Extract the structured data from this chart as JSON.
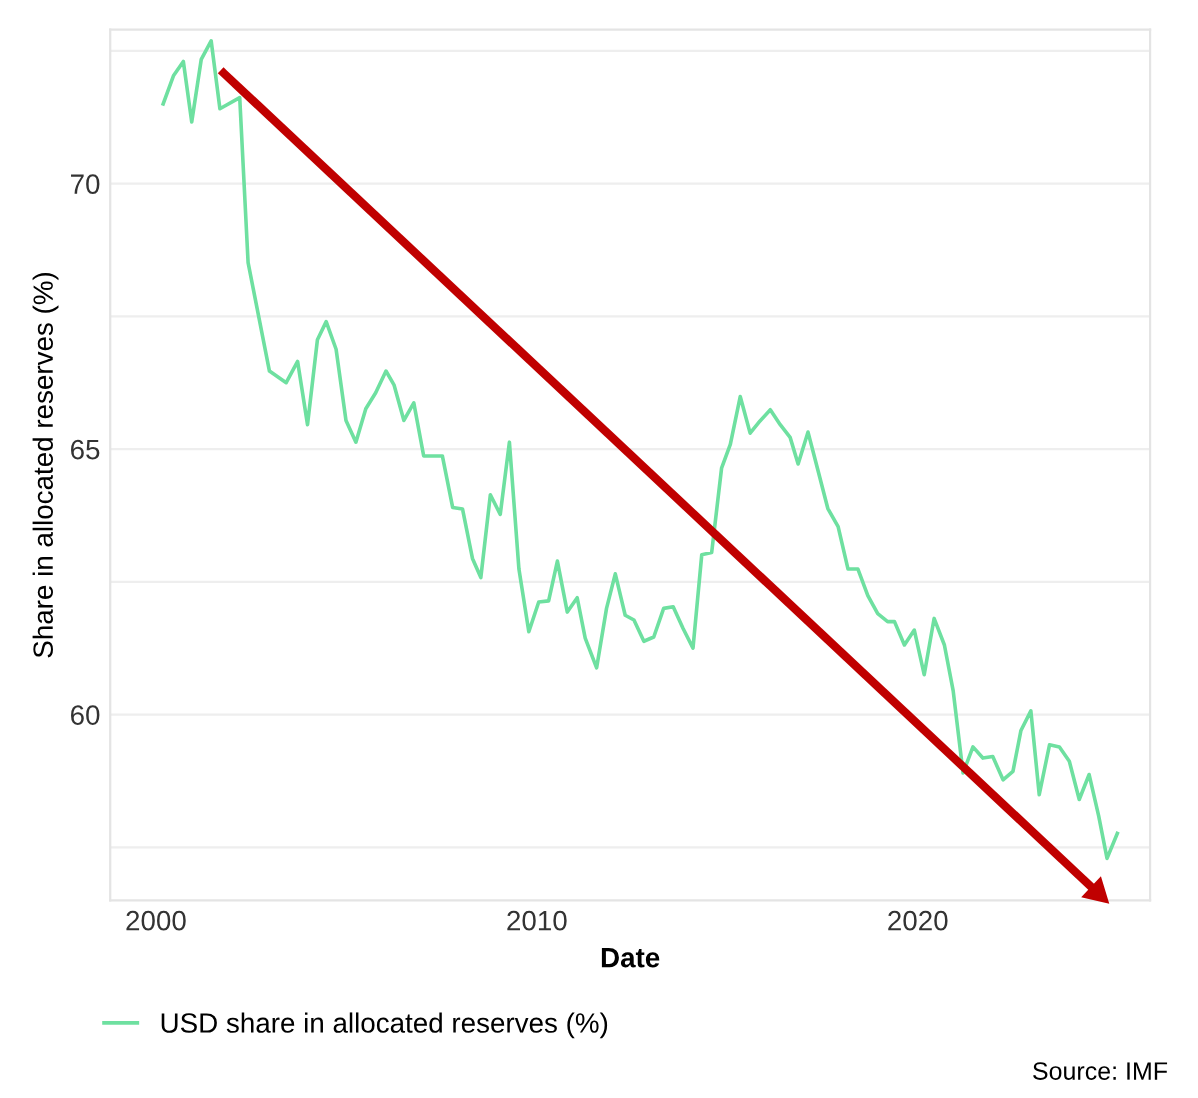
{
  "chart_data": {
    "type": "line",
    "xlabel": "Date",
    "ylabel": "Share in allocated reserves (%)",
    "xlim": [
      1998.8,
      2026.1
    ],
    "xticks": [
      2000,
      2010,
      2020
    ],
    "ylim": [
      56.5,
      72.9
    ],
    "yticks": [
      {
        "value": 57.5,
        "label": null
      },
      60,
      {
        "value": 62.5,
        "label": null
      },
      65,
      {
        "value": 67.5,
        "label": null
      },
      70,
      {
        "value": 72.5,
        "label": null
      }
    ],
    "grid": "y",
    "legend": "bottom left",
    "marker": "none",
    "line_style": "solid",
    "annotations": [
      "Source: IMF"
    ],
    "series": [
      {
        "name": "USD share in allocated reserves (%)",
        "color": "#6ee0a0",
        "x": [
          2000.19,
          2000.46,
          2000.72,
          2000.94,
          2001.19,
          2001.45,
          2001.68,
          2002.2,
          2002.42,
          2002.98,
          2003.42,
          2003.72,
          2003.98,
          2004.24,
          2004.47,
          2004.73,
          2004.99,
          2005.25,
          2005.51,
          2005.77,
          2006.04,
          2006.25,
          2006.51,
          2006.77,
          2007.03,
          2007.52,
          2007.79,
          2008.05,
          2008.31,
          2008.53,
          2008.78,
          2009.04,
          2009.28,
          2009.53,
          2009.79,
          2010.05,
          2010.31,
          2010.54,
          2010.8,
          2011.06,
          2011.27,
          2011.57,
          2011.83,
          2012.06,
          2012.32,
          2012.55,
          2012.81,
          2013.07,
          2013.33,
          2013.58,
          2013.84,
          2014.1,
          2014.33,
          2014.59,
          2014.85,
          2015.08,
          2015.34,
          2015.6,
          2015.86,
          2016.13,
          2016.39,
          2016.65,
          2016.86,
          2017.12,
          2017.38,
          2017.64,
          2017.91,
          2018.17,
          2018.43,
          2018.69,
          2018.95,
          2019.21,
          2019.39,
          2019.65,
          2019.91,
          2020.17,
          2020.43,
          2020.7,
          2020.93,
          2021.19,
          2021.45,
          2021.71,
          2021.97,
          2022.24,
          2022.5,
          2022.71,
          2022.97,
          2023.19,
          2023.46,
          2023.72,
          2023.98,
          2024.24,
          2024.5,
          2024.75,
          2024.97,
          2025.24
        ],
        "values": [
          71.5,
          72.03,
          72.3,
          71.16,
          72.34,
          72.69,
          71.41,
          71.62,
          68.51,
          66.47,
          66.25,
          66.65,
          65.46,
          67.06,
          67.4,
          66.88,
          65.54,
          65.13,
          65.76,
          66.06,
          66.47,
          66.21,
          65.54,
          65.87,
          64.87,
          64.87,
          63.9,
          63.87,
          62.94,
          62.58,
          64.14,
          63.77,
          65.13,
          62.74,
          61.56,
          62.12,
          62.14,
          62.89,
          61.93,
          62.2,
          61.44,
          60.88,
          62.0,
          62.65,
          61.87,
          61.78,
          61.38,
          61.46,
          62.0,
          62.03,
          61.62,
          61.25,
          63.01,
          63.05,
          64.64,
          65.09,
          65.99,
          65.3,
          65.53,
          65.74,
          65.46,
          65.22,
          64.72,
          65.32,
          64.6,
          63.88,
          63.54,
          62.74,
          62.74,
          62.24,
          61.9,
          61.75,
          61.75,
          61.31,
          61.59,
          60.75,
          61.81,
          61.31,
          60.45,
          58.9,
          59.39,
          59.18,
          59.21,
          58.77,
          58.93,
          59.7,
          60.07,
          58.49,
          59.43,
          59.39,
          59.12,
          58.4,
          58.87,
          58.09,
          57.29,
          57.76
        ]
      },
      {
        "type": "line",
        "color": "#c00000",
        "marker": "triangle",
        "x": [
          2001.78,
          2024.71
        ],
        "values": [
          72.08,
          56.65
        ]
      }
    ]
  }
}
